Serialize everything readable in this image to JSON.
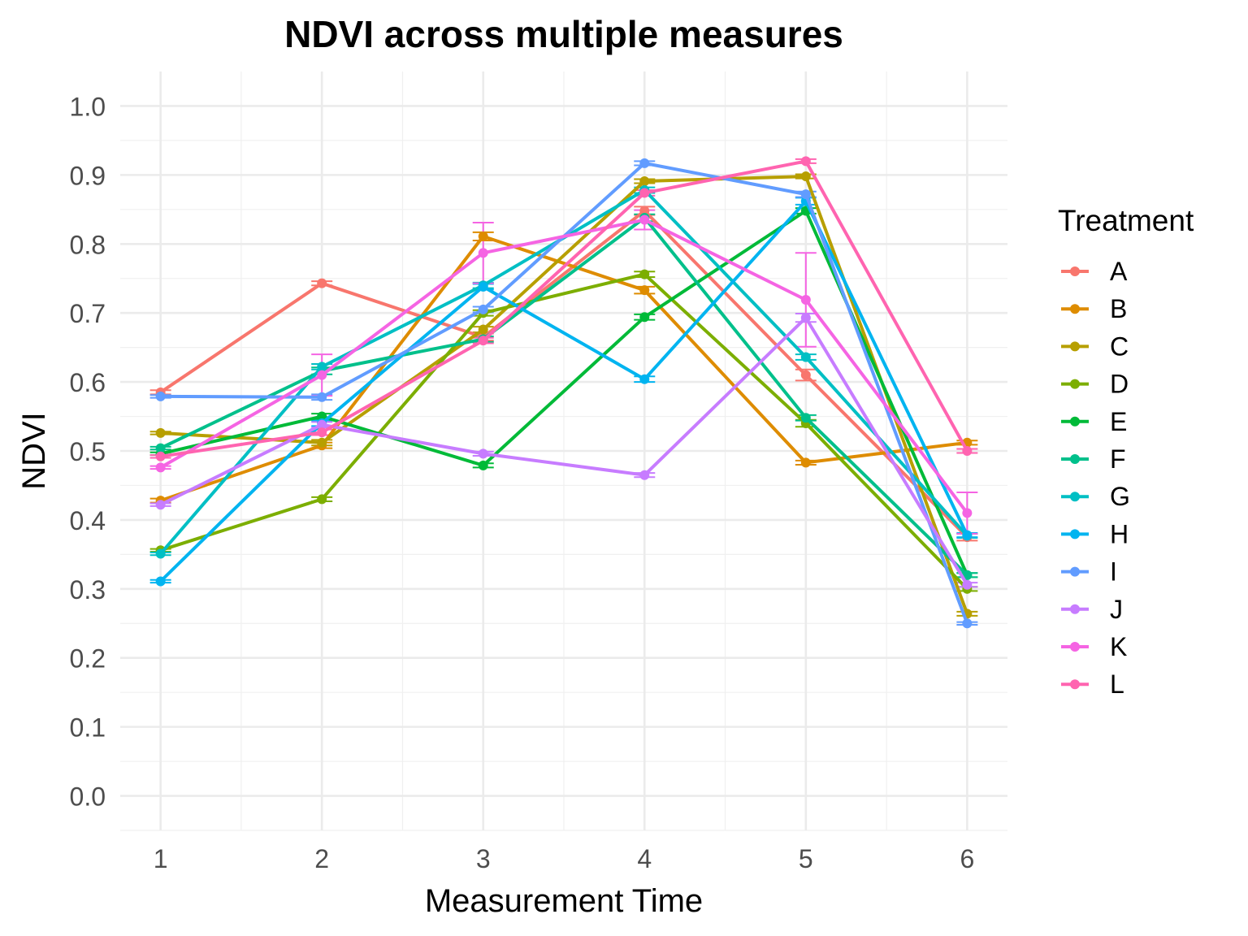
{
  "chart_data": {
    "type": "line",
    "title": "NDVI across multiple measures",
    "xlabel": "Measurement Time",
    "ylabel": "NDVI",
    "legend_title": "Treatment",
    "legend_position": "right",
    "grid": true,
    "x": [
      1,
      2,
      3,
      4,
      5,
      6
    ],
    "xlim": [
      0.75,
      6.25
    ],
    "ylim": [
      -0.05,
      1.05
    ],
    "y_ticks": [
      "0.0",
      "0.1",
      "0.2",
      "0.3",
      "0.4",
      "0.5",
      "0.6",
      "0.7",
      "0.8",
      "0.9",
      "1.0"
    ],
    "x_ticks": [
      "1",
      "2",
      "3",
      "4",
      "5",
      "6"
    ],
    "series": [
      {
        "name": "A",
        "color": "#F8766D",
        "values": [
          0.585,
          0.743,
          0.665,
          0.848,
          0.61,
          0.375
        ],
        "errors": [
          0.003,
          0.003,
          0.005,
          0.006,
          0.008,
          0.005
        ]
      },
      {
        "name": "B",
        "color": "#DE8C00",
        "values": [
          0.428,
          0.508,
          0.811,
          0.733,
          0.483,
          0.512
        ],
        "errors": [
          0.003,
          0.004,
          0.006,
          0.005,
          0.003,
          0.003
        ]
      },
      {
        "name": "C",
        "color": "#B79F00",
        "values": [
          0.526,
          0.512,
          0.676,
          0.891,
          0.898,
          0.264
        ],
        "errors": [
          0.002,
          0.004,
          0.004,
          0.003,
          0.003,
          0.003
        ]
      },
      {
        "name": "D",
        "color": "#7CAE00",
        "values": [
          0.356,
          0.43,
          0.7,
          0.756,
          0.54,
          0.3
        ],
        "errors": [
          0.002,
          0.003,
          0.004,
          0.004,
          0.005,
          0.003
        ]
      },
      {
        "name": "E",
        "color": "#00BA38",
        "values": [
          0.496,
          0.55,
          0.479,
          0.694,
          0.848,
          0.32
        ],
        "errors": [
          0.002,
          0.004,
          0.003,
          0.004,
          0.004,
          0.003
        ]
      },
      {
        "name": "F",
        "color": "#00C08B",
        "values": [
          0.504,
          0.616,
          0.662,
          0.838,
          0.548,
          0.32
        ],
        "errors": [
          0.002,
          0.005,
          0.004,
          0.005,
          0.004,
          0.003
        ]
      },
      {
        "name": "G",
        "color": "#00BFC4",
        "values": [
          0.351,
          0.622,
          0.74,
          0.878,
          0.636,
          0.377
        ],
        "errors": [
          0.002,
          0.004,
          0.004,
          0.004,
          0.004,
          0.003
        ]
      },
      {
        "name": "H",
        "color": "#00B4F0",
        "values": [
          0.311,
          0.54,
          0.738,
          0.604,
          0.862,
          0.378
        ],
        "errors": [
          0.002,
          0.004,
          0.004,
          0.004,
          0.005,
          0.003
        ]
      },
      {
        "name": "I",
        "color": "#619CFF",
        "values": [
          0.579,
          0.578,
          0.705,
          0.917,
          0.872,
          0.25
        ],
        "errors": [
          0.002,
          0.004,
          0.004,
          0.003,
          0.004,
          0.002
        ]
      },
      {
        "name": "J",
        "color": "#C77CFF",
        "values": [
          0.422,
          0.538,
          0.496,
          0.465,
          0.693,
          0.306
        ],
        "errors": [
          0.002,
          0.004,
          0.003,
          0.003,
          0.006,
          0.003
        ]
      },
      {
        "name": "K",
        "color": "#F564E3",
        "values": [
          0.476,
          0.61,
          0.787,
          0.835,
          0.719,
          0.41
        ],
        "errors": [
          0.002,
          0.03,
          0.044,
          0.014,
          0.068,
          0.03
        ]
      },
      {
        "name": "L",
        "color": "#FF64B0",
        "values": [
          0.492,
          0.527,
          0.66,
          0.874,
          0.92,
          0.5
        ],
        "errors": [
          0.002,
          0.004,
          0.004,
          0.004,
          0.003,
          0.003
        ]
      }
    ]
  }
}
